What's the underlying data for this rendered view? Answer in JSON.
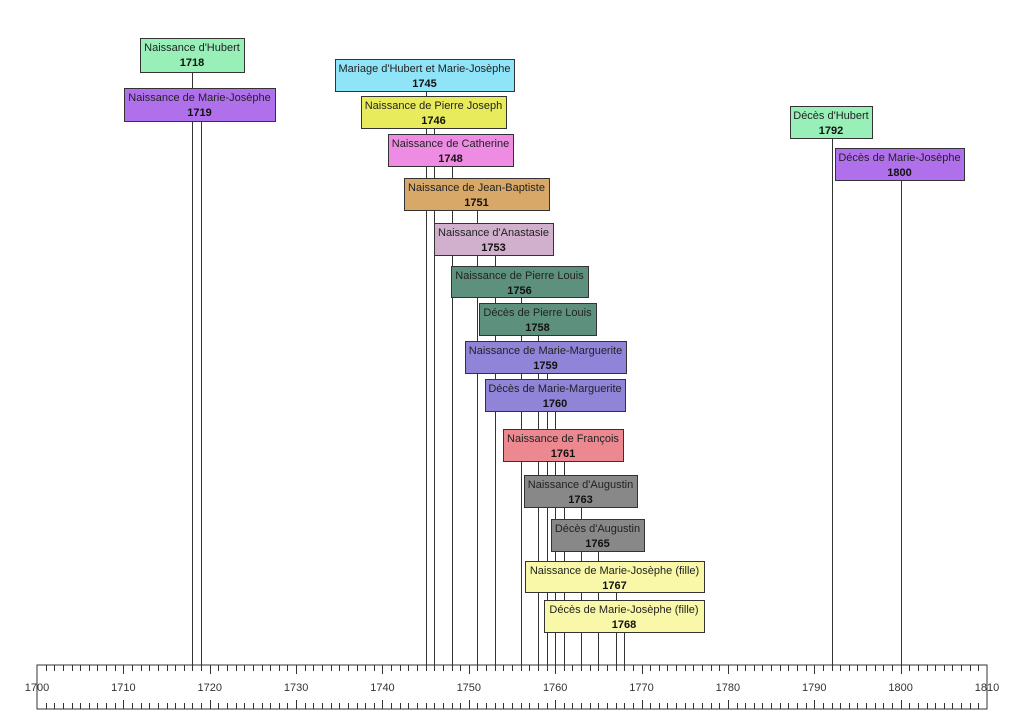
{
  "chart_data": {
    "type": "timeline",
    "title": "",
    "xlim": [
      1700,
      1810
    ],
    "major_tick_step": 10,
    "minor_tick_step": 1,
    "tick_labels": [
      "1700",
      "1710",
      "1720",
      "1730",
      "1740",
      "1750",
      "1760",
      "1770",
      "1780",
      "1790",
      "1800",
      "1810"
    ],
    "events": [
      {
        "label": "Naissance d'Hubert",
        "year": 1718,
        "color": "#98f0b8"
      },
      {
        "label": "Naissance de Marie-Josèphe",
        "year": 1719,
        "color": "#b070ec"
      },
      {
        "label": "Mariage d'Hubert et Marie-Josèphe",
        "year": 1745,
        "color": "#90e4f8"
      },
      {
        "label": "Naissance de Pierre Joseph",
        "year": 1746,
        "color": "#e8ec5c"
      },
      {
        "label": "Naissance de Catherine",
        "year": 1748,
        "color": "#ee8ce4"
      },
      {
        "label": "Naissance de Jean-Baptiste",
        "year": 1751,
        "color": "#d8a868"
      },
      {
        "label": "Naissance d'Anastasie",
        "year": 1753,
        "color": "#d0b0cc"
      },
      {
        "label": "Naissance de Pierre Louis",
        "year": 1756,
        "color": "#5e907e"
      },
      {
        "label": "Décès de Pierre Louis",
        "year": 1758,
        "color": "#5e907e"
      },
      {
        "label": "Naissance de Marie-Marguerite",
        "year": 1759,
        "color": "#9084d8"
      },
      {
        "label": "Décès de Marie-Marguerite",
        "year": 1760,
        "color": "#9084d8"
      },
      {
        "label": "Naissance de François",
        "year": 1761,
        "color": "#ec8890"
      },
      {
        "label": "Naissance d'Augustin",
        "year": 1763,
        "color": "#888888"
      },
      {
        "label": "Décès d'Augustin",
        "year": 1765,
        "color": "#888888"
      },
      {
        "label": "Naissance de Marie-Josèphe (fille)",
        "year": 1767,
        "color": "#f8f8a8"
      },
      {
        "label": "Décès de Marie-Josèphe (fille)",
        "year": 1768,
        "color": "#f8f8a8"
      },
      {
        "label": "Décès d'Hubert",
        "year": 1792,
        "color": "#98f0b8"
      },
      {
        "label": "Décès de Marie-Josèphe",
        "year": 1800,
        "color": "#b070ec"
      }
    ]
  }
}
